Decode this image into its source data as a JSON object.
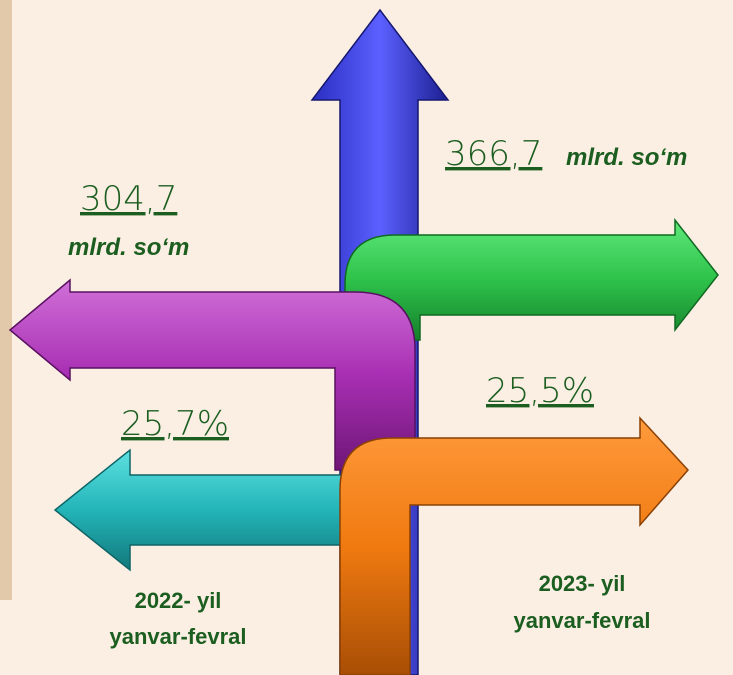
{
  "left": {
    "amount": "304,7",
    "unit": "mlrd. so‘m",
    "percent": "25,7%",
    "period": [
      "2022- yil",
      "yanvar-fevral"
    ]
  },
  "right": {
    "amount": "366,7",
    "unit": "mlrd. so‘m",
    "percent": "25,5%",
    "period": [
      "2023- yil",
      "yanvar-fevral"
    ]
  }
}
